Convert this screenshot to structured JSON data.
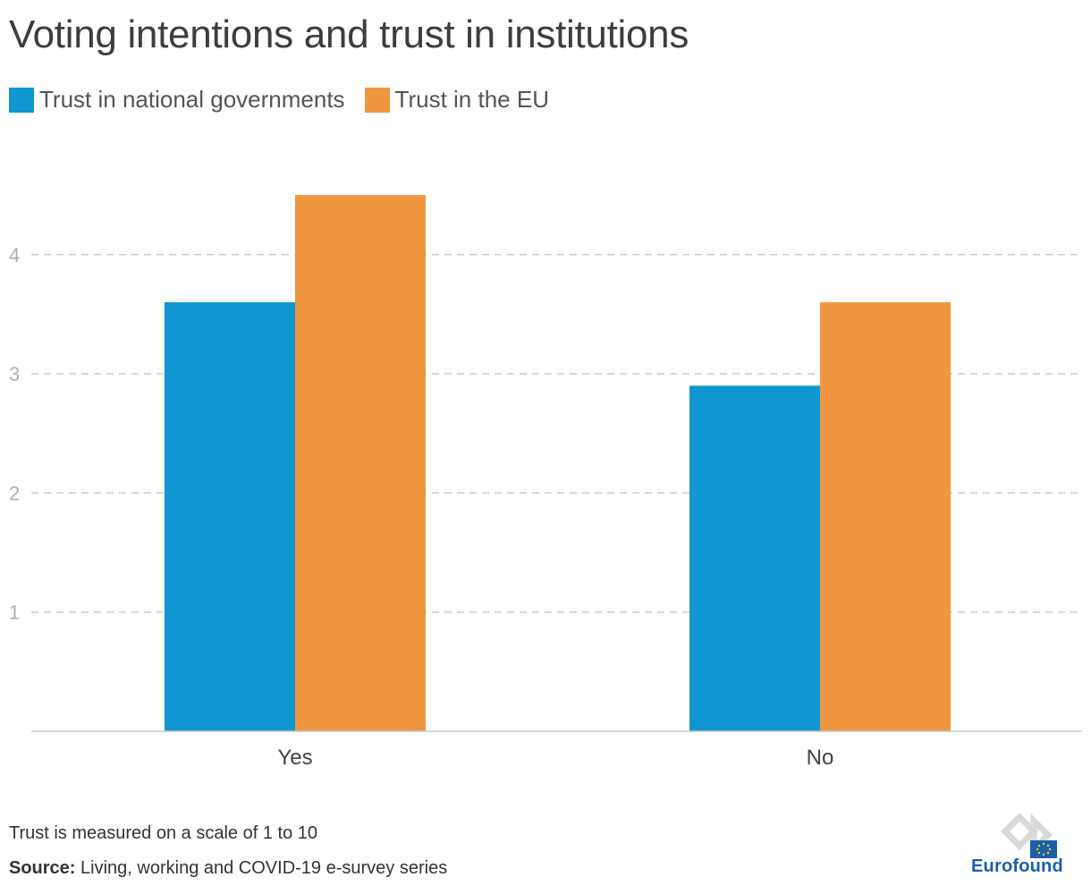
{
  "title": "Voting intentions and trust in institutions",
  "legend": [
    {
      "label": "Trust in national governments",
      "color": "#1096d0"
    },
    {
      "label": "Trust in the EU",
      "color": "#f09641"
    }
  ],
  "note": "Trust is measured on a scale of 1 to 10",
  "source": {
    "label": "Source:",
    "text": "Living, working and COVID-19 e-survey series"
  },
  "logo": {
    "text": "Eurofound",
    "icon": "eurofound-logo-icon"
  },
  "chart_data": {
    "type": "bar",
    "categories": [
      "Yes",
      "No"
    ],
    "series": [
      {
        "name": "Trust in national governments",
        "values": [
          3.6,
          2.9
        ],
        "color": "#1096d0"
      },
      {
        "name": "Trust in the EU",
        "values": [
          4.5,
          3.6
        ],
        "color": "#f09641"
      }
    ],
    "yticks": [
      1,
      2,
      3,
      4
    ],
    "ylim": [
      0,
      5
    ],
    "grid": true,
    "legend_position": "top-left"
  }
}
